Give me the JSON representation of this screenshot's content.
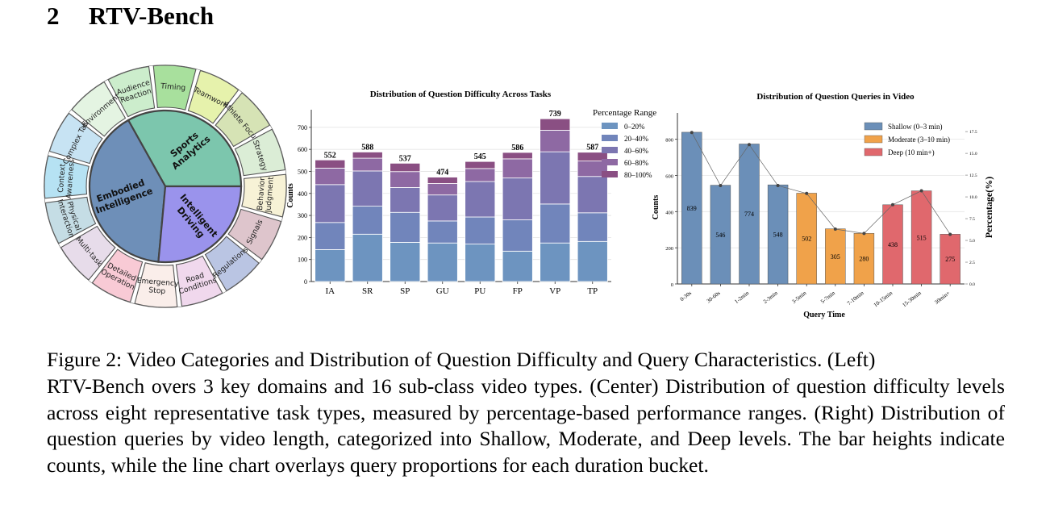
{
  "section": {
    "number": "2",
    "title": "RTV-Bench"
  },
  "sunburst": {
    "domains": [
      {
        "label": "Sports\nAnalytics",
        "color": "#7cc6ad"
      },
      {
        "label": "Embodied\nIntelligence",
        "color": "#6e8fb8"
      },
      {
        "label": "Intelligent\nDriving",
        "color": "#9a93ec"
      }
    ],
    "subclasses": [
      {
        "label": "Audience\nReaction",
        "color": "#ccedcc"
      },
      {
        "label": "Timing",
        "color": "#a8e09d"
      },
      {
        "label": "Teamwork",
        "color": "#e6f2ac"
      },
      {
        "label": "Athlete Focus",
        "color": "#d6e3b5"
      },
      {
        "label": "Strategy",
        "color": "#dbedd6"
      },
      {
        "label": "Behavior\nJudgment",
        "color": "#f7f2d6"
      },
      {
        "label": "Signals",
        "color": "#dec5cc"
      },
      {
        "label": "Regulations",
        "color": "#bac5e3"
      },
      {
        "label": "Road\nConditions",
        "color": "#f0d8ed"
      },
      {
        "label": "Emergency\nStop",
        "color": "#faeeea"
      },
      {
        "label": "Detailed\nOperation",
        "color": "#f8cad5"
      },
      {
        "label": "Multi-task",
        "color": "#e7dcea"
      },
      {
        "label": "Physical\nInteraction",
        "color": "#c5dde5"
      },
      {
        "label": "Context\nAwareness",
        "color": "#b6e2f3"
      },
      {
        "label": "Complex Task",
        "color": "#c7e3f3"
      },
      {
        "label": "Environment",
        "color": "#e4f4e2"
      }
    ]
  },
  "chart_data": [
    {
      "type": "bar",
      "stacked": true,
      "title": "Distribution of Question Difficulty Across Tasks",
      "xlabel": "",
      "ylabel": "Counts",
      "ylim": [
        0,
        780
      ],
      "yticks": [
        0,
        100,
        200,
        300,
        400,
        500,
        600,
        700
      ],
      "grid": "horizontal",
      "legend_title": "Percentage Range",
      "legend_position": "top-right",
      "categories": [
        "IA",
        "SR",
        "SP",
        "GU",
        "PU",
        "FP",
        "VP",
        "TP"
      ],
      "totals": [
        552,
        588,
        537,
        474,
        545,
        586,
        739,
        587
      ],
      "series": [
        {
          "name": "0–20%",
          "color": "#6d94c0",
          "values": [
            145,
            215,
            178,
            175,
            170,
            138,
            175,
            182
          ]
        },
        {
          "name": "20–40%",
          "color": "#7185bb",
          "values": [
            123,
            127,
            136,
            100,
            123,
            142,
            177,
            130
          ]
        },
        {
          "name": "40–60%",
          "color": "#7c76b1",
          "values": [
            172,
            160,
            113,
            118,
            161,
            190,
            237,
            165
          ]
        },
        {
          "name": "60–80%",
          "color": "#8e69a3",
          "values": [
            75,
            58,
            72,
            52,
            59,
            87,
            98,
            70
          ]
        },
        {
          "name": "80–100%",
          "color": "#8a4f83",
          "values": [
            37,
            28,
            38,
            29,
            32,
            29,
            52,
            40
          ]
        }
      ]
    },
    {
      "type": "bar",
      "title": "Distribution of Question Queries in Video",
      "xlabel": "Query Time",
      "ylabel": "Counts",
      "ylabel_right": "Percentage(%)",
      "ylim": [
        0,
        910
      ],
      "yticks": [
        0,
        200,
        400,
        600,
        800
      ],
      "ylim_right": [
        0,
        18.9
      ],
      "yticks_right": [
        "0.0",
        "2.5",
        "5.0",
        "7.5",
        "10.0",
        "12.5",
        "15.0",
        "17.5"
      ],
      "grid": "horizontal",
      "legend_position": "top-right",
      "categories": [
        "0-30s",
        "30-60s",
        "1-2min",
        "2-3min",
        "3-5min",
        "5-7min",
        "7-10min",
        "10-15min",
        "15-30min",
        "30min+"
      ],
      "values": [
        839,
        546,
        774,
        548,
        502,
        305,
        280,
        438,
        515,
        275
      ],
      "groups": [
        "Shallow",
        "Shallow",
        "Shallow",
        "Shallow",
        "Moderate",
        "Moderate",
        "Moderate",
        "Deep",
        "Deep",
        "Deep"
      ],
      "legend": [
        {
          "key": "Shallow",
          "label": "Shallow (0–3 min)",
          "color": "#6b8fb8"
        },
        {
          "key": "Moderate",
          "label": "Moderate (3–10 min)",
          "color": "#f0a24a"
        },
        {
          "key": "Deep",
          "label": "Deep (10 min+)",
          "color": "#e0686d"
        }
      ],
      "line": {
        "values": [
          17.4,
          11.3,
          16.0,
          11.3,
          10.4,
          6.3,
          5.8,
          9.1,
          10.7,
          5.7
        ]
      }
    }
  ],
  "caption": {
    "line1": "Figure 2: Video Categories and Distribution of Question Difficulty and Query Characteristics. (Left)",
    "rest": "RTV-Bench overs 3 key domains and 16 sub-class video types. (Center) Distribution of question difficulty levels across eight representative task types, measured by percentage-based performance ranges. (Right) Distribution of question queries by video length, categorized into Shallow, Moderate, and Deep levels. The bar heights indicate counts, while the line chart overlays query proportions for each duration bucket."
  }
}
